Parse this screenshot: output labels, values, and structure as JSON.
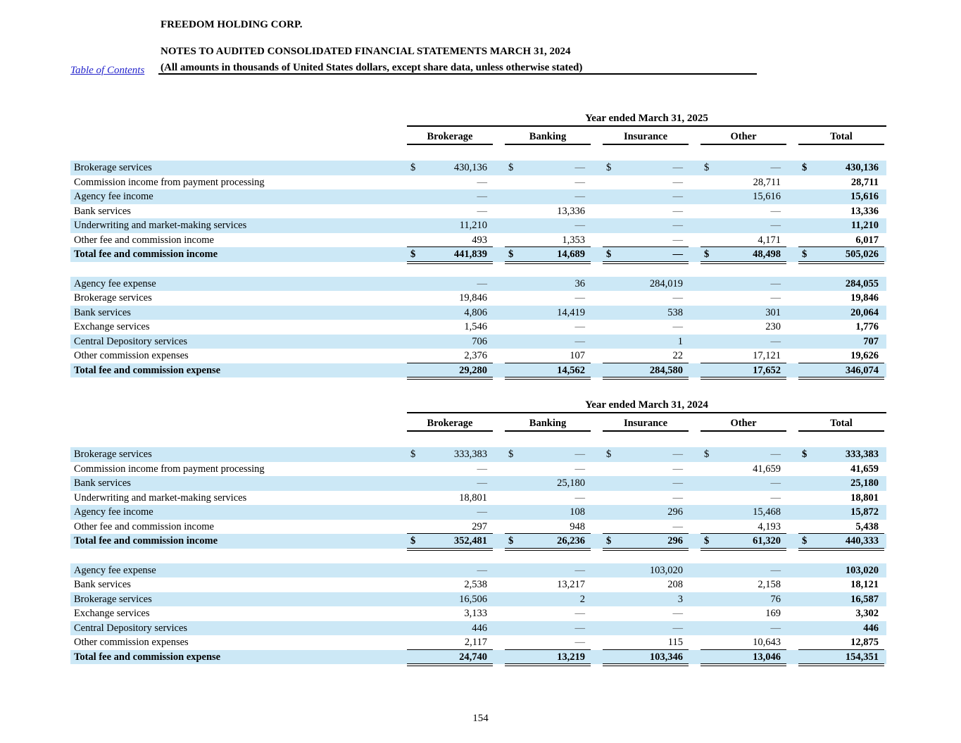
{
  "header": {
    "toc_link": "Table of Contents",
    "company": "FREEDOM HOLDING CORP.",
    "title": "NOTES TO AUDITED CONSOLIDATED FINANCIAL STATEMENTS MARCH 31, 2024",
    "subtitle": "(All amounts in thousands of United States dollars, except share data, unless otherwise stated)"
  },
  "footer": {
    "page_number": "154"
  },
  "colors": {
    "stripe": "#cce8f6",
    "link": "#2323cc",
    "text": "#000000"
  },
  "tables": [
    {
      "period": "Year ended March 31, 2025",
      "columns": [
        "Brokerage",
        "Banking",
        "Insurance",
        "Other",
        "Total"
      ],
      "sections": [
        {
          "name": "income",
          "rows": [
            {
              "label": "Brokerage services",
              "dollar": true,
              "total": false,
              "values": [
                "430,136",
                "—",
                "—",
                "—",
                "430,136"
              ]
            },
            {
              "label": "Commission income from payment processing",
              "dollar": false,
              "total": false,
              "values": [
                "—",
                "—",
                "—",
                "28,711",
                "28,711"
              ]
            },
            {
              "label": "Agency fee income",
              "dollar": false,
              "total": false,
              "values": [
                "—",
                "—",
                "—",
                "15,616",
                "15,616"
              ]
            },
            {
              "label": "Bank services",
              "dollar": false,
              "total": false,
              "values": [
                "—",
                "13,336",
                "—",
                "—",
                "13,336"
              ]
            },
            {
              "label": "Underwriting and market-making services",
              "dollar": false,
              "total": false,
              "values": [
                "11,210",
                "—",
                "—",
                "—",
                "11,210"
              ]
            },
            {
              "label": "Other fee and commission income",
              "dollar": false,
              "total": false,
              "values": [
                "493",
                "1,353",
                "—",
                "4,171",
                "6,017"
              ]
            },
            {
              "label": "Total fee and commission income",
              "dollar": true,
              "total": true,
              "values": [
                "441,839",
                "14,689",
                "—",
                "48,498",
                "505,026"
              ]
            }
          ]
        },
        {
          "name": "expense",
          "rows": [
            {
              "label": "Agency fee expense",
              "dollar": false,
              "total": false,
              "values": [
                "—",
                "36",
                "284,019",
                "—",
                "284,055"
              ]
            },
            {
              "label": "Brokerage services",
              "dollar": false,
              "total": false,
              "values": [
                "19,846",
                "—",
                "—",
                "—",
                "19,846"
              ]
            },
            {
              "label": "Bank services",
              "dollar": false,
              "total": false,
              "values": [
                "4,806",
                "14,419",
                "538",
                "301",
                "20,064"
              ]
            },
            {
              "label": "Exchange services",
              "dollar": false,
              "total": false,
              "values": [
                "1,546",
                "—",
                "—",
                "230",
                "1,776"
              ]
            },
            {
              "label": "Central Depository services",
              "dollar": false,
              "total": false,
              "values": [
                "706",
                "—",
                "1",
                "—",
                "707"
              ]
            },
            {
              "label": "Other commission expenses",
              "dollar": false,
              "total": false,
              "values": [
                "2,376",
                "107",
                "22",
                "17,121",
                "19,626"
              ]
            },
            {
              "label": "Total fee and commission expense",
              "dollar": false,
              "total": true,
              "values": [
                "29,280",
                "14,562",
                "284,580",
                "17,652",
                "346,074"
              ]
            }
          ]
        }
      ]
    },
    {
      "period": "Year ended March 31, 2024",
      "columns": [
        "Brokerage",
        "Banking",
        "Insurance",
        "Other",
        "Total"
      ],
      "sections": [
        {
          "name": "income",
          "rows": [
            {
              "label": "Brokerage services",
              "dollar": true,
              "total": false,
              "values": [
                "333,383",
                "—",
                "—",
                "—",
                "333,383"
              ]
            },
            {
              "label": "Commission income from payment processing",
              "dollar": false,
              "total": false,
              "values": [
                "—",
                "—",
                "—",
                "41,659",
                "41,659"
              ]
            },
            {
              "label": "Bank services",
              "dollar": false,
              "total": false,
              "values": [
                "—",
                "25,180",
                "—",
                "—",
                "25,180"
              ]
            },
            {
              "label": "Underwriting and market-making services",
              "dollar": false,
              "total": false,
              "values": [
                "18,801",
                "—",
                "—",
                "—",
                "18,801"
              ]
            },
            {
              "label": "Agency fee income",
              "dollar": false,
              "total": false,
              "values": [
                "—",
                "108",
                "296",
                "15,468",
                "15,872"
              ]
            },
            {
              "label": "Other fee and commission income",
              "dollar": false,
              "total": false,
              "values": [
                "297",
                "948",
                "—",
                "4,193",
                "5,438"
              ]
            },
            {
              "label": "Total fee and commission income",
              "dollar": true,
              "total": true,
              "values": [
                "352,481",
                "26,236",
                "296",
                "61,320",
                "440,333"
              ]
            }
          ]
        },
        {
          "name": "expense",
          "rows": [
            {
              "label": "Agency fee expense",
              "dollar": false,
              "total": false,
              "values": [
                "—",
                "—",
                "103,020",
                "—",
                "103,020"
              ]
            },
            {
              "label": "Bank services",
              "dollar": false,
              "total": false,
              "values": [
                "2,538",
                "13,217",
                "208",
                "2,158",
                "18,121"
              ]
            },
            {
              "label": "Brokerage services",
              "dollar": false,
              "total": false,
              "values": [
                "16,506",
                "2",
                "3",
                "76",
                "16,587"
              ]
            },
            {
              "label": "Exchange services",
              "dollar": false,
              "total": false,
              "values": [
                "3,133",
                "—",
                "—",
                "169",
                "3,302"
              ]
            },
            {
              "label": "Central Depository services",
              "dollar": false,
              "total": false,
              "values": [
                "446",
                "—",
                "—",
                "—",
                "446"
              ]
            },
            {
              "label": "Other commission expenses",
              "dollar": false,
              "total": false,
              "values": [
                "2,117",
                "—",
                "115",
                "10,643",
                "12,875"
              ]
            },
            {
              "label": "Total fee and commission expense",
              "dollar": false,
              "total": true,
              "values": [
                "24,740",
                "13,219",
                "103,346",
                "13,046",
                "154,351"
              ]
            }
          ]
        }
      ]
    }
  ]
}
